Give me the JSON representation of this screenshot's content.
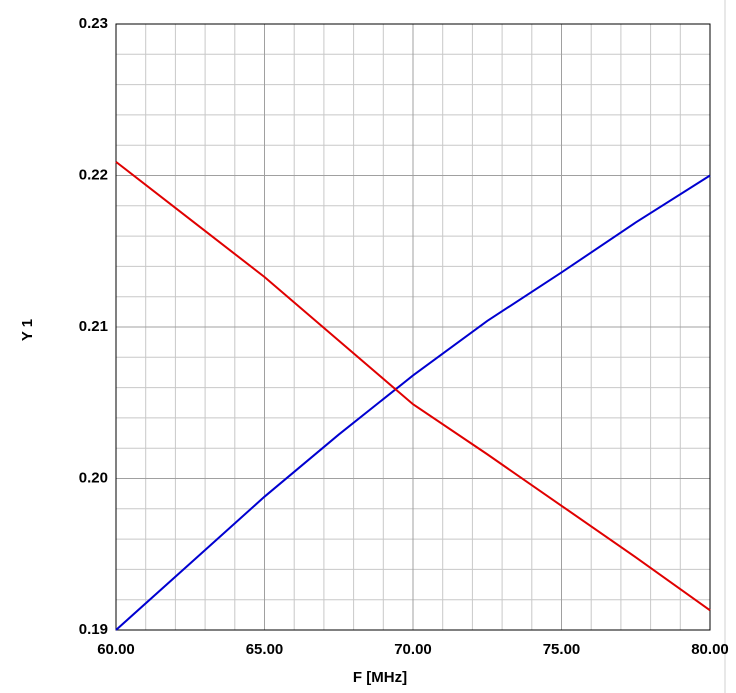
{
  "chart_data": {
    "type": "line",
    "xlabel": "F [MHz]",
    "ylabel": "Y 1",
    "x": [
      60,
      62.5,
      65,
      67.5,
      70,
      72.5,
      75,
      77.5,
      80
    ],
    "series": [
      {
        "color": "#0000d0",
        "values": [
          0.19,
          0.1944,
          0.1988,
          0.2029,
          0.2068,
          0.2104,
          0.2136,
          0.2169,
          0.22
        ]
      },
      {
        "color": "#e00000",
        "values": [
          0.2209,
          0.2171,
          0.2133,
          0.2091,
          0.2049,
          0.2016,
          0.1982,
          0.1948,
          0.1913
        ]
      }
    ],
    "xlim": [
      60,
      80
    ],
    "xticks": [
      {
        "value": 60,
        "label": "60.00"
      },
      {
        "value": 65,
        "label": "65.00"
      },
      {
        "value": 70,
        "label": "70.00"
      },
      {
        "value": 75,
        "label": "75.00"
      },
      {
        "value": 80,
        "label": "80.00"
      }
    ],
    "ylim": [
      0.19,
      0.23
    ],
    "yticks": [
      0.19,
      {
        "value": 0.2,
        "label": "0.20"
      },
      0.21,
      0.22,
      0.23
    ],
    "grid": true
  }
}
